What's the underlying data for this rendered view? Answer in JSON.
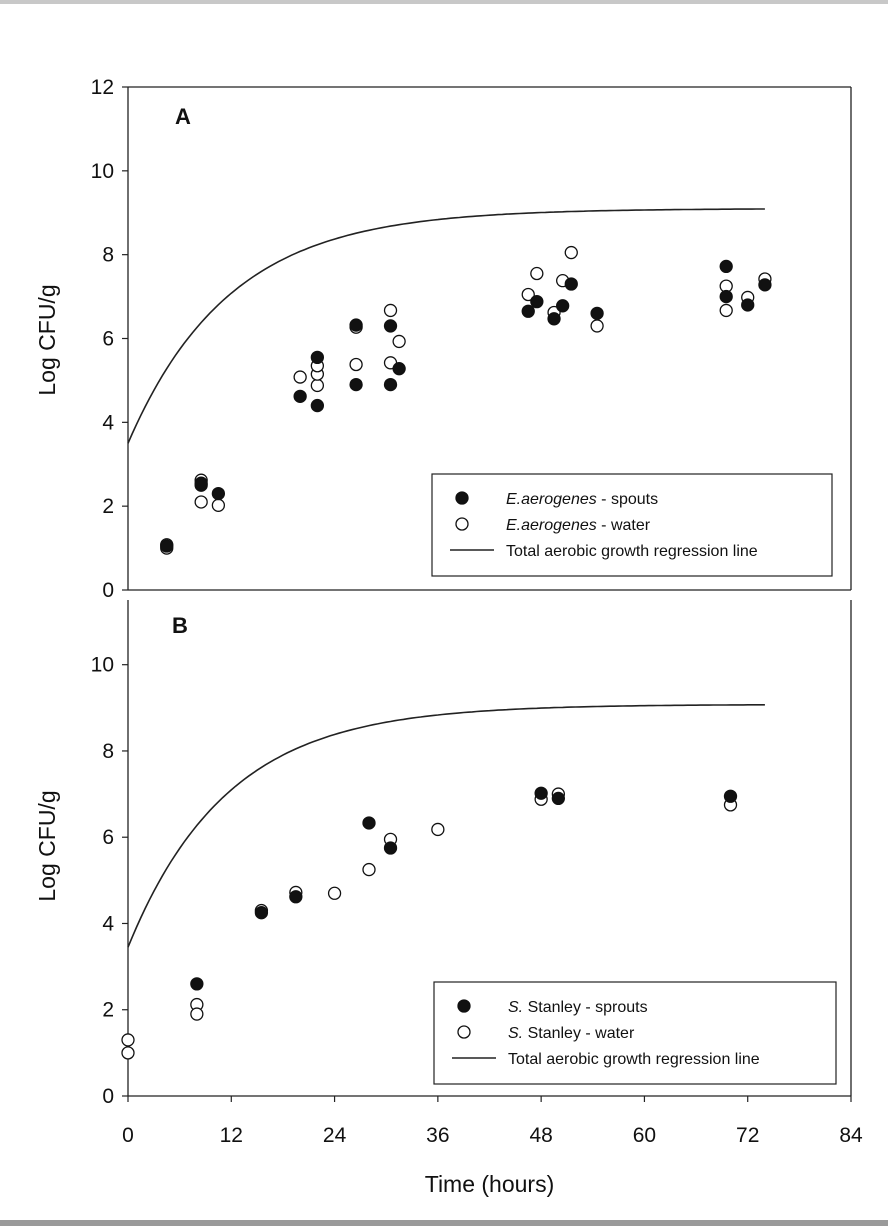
{
  "chart_data": [
    {
      "type": "scatter",
      "panel_label": "A",
      "ylabel": "Log CFU/g",
      "xlabel": "",
      "xlim": [
        0,
        84
      ],
      "ylim": [
        0,
        12
      ],
      "yticks": [
        0,
        2,
        4,
        6,
        8,
        10,
        12
      ],
      "legend_position": "bottom-right",
      "grid": false,
      "legend": [
        {
          "italic": "E.aerogenes",
          "rest": " - spouts",
          "marker": "filled"
        },
        {
          "italic": "E.aerogenes",
          "rest": " - water",
          "marker": "open"
        },
        {
          "italic": "",
          "rest": "Total aerobic growth regression line",
          "marker": "line"
        }
      ],
      "series": [
        {
          "marker": "filled",
          "points": [
            [
              4.5,
              1.05
            ],
            [
              8.5,
              2.5
            ],
            [
              8.5,
              2.55
            ],
            [
              10.5,
              2.3
            ],
            [
              20,
              4.62
            ],
            [
              22,
              4.4
            ],
            [
              22,
              5.55
            ],
            [
              26.5,
              4.9
            ],
            [
              26.5,
              6.32
            ],
            [
              30.5,
              4.9
            ],
            [
              30.5,
              6.3
            ],
            [
              31.5,
              5.28
            ],
            [
              46.5,
              6.65
            ],
            [
              47.5,
              6.88
            ],
            [
              49.5,
              6.47
            ],
            [
              50.5,
              6.78
            ],
            [
              51.5,
              7.3
            ],
            [
              54.5,
              6.6
            ],
            [
              69.5,
              7.72
            ],
            [
              69.5,
              7.0
            ],
            [
              72,
              6.8
            ],
            [
              74,
              7.28
            ]
          ]
        },
        {
          "marker": "open",
          "points": [
            [
              4.5,
              1.0
            ],
            [
              4.5,
              1.08
            ],
            [
              8.5,
              2.1
            ],
            [
              8.5,
              2.62
            ],
            [
              10.5,
              2.02
            ],
            [
              20,
              5.08
            ],
            [
              22,
              4.88
            ],
            [
              22,
              5.15
            ],
            [
              22,
              5.35
            ],
            [
              26.5,
              5.38
            ],
            [
              26.5,
              6.27
            ],
            [
              30.5,
              5.42
            ],
            [
              30.5,
              6.67
            ],
            [
              31.5,
              5.93
            ],
            [
              46.5,
              7.05
            ],
            [
              47.5,
              7.55
            ],
            [
              49.5,
              6.62
            ],
            [
              50.5,
              7.38
            ],
            [
              51.5,
              8.05
            ],
            [
              54.5,
              6.3
            ],
            [
              69.5,
              6.67
            ],
            [
              69.5,
              7.25
            ],
            [
              72,
              6.98
            ],
            [
              74,
              7.42
            ]
          ]
        }
      ],
      "regression": {
        "a": 3.5,
        "b": 9.1,
        "k": 0.085,
        "x_end": 74
      }
    },
    {
      "type": "scatter",
      "panel_label": "B",
      "ylabel": "Log CFU/g",
      "xlabel": "Time (hours)",
      "xlim": [
        0,
        84
      ],
      "ylim": [
        0,
        11.5
      ],
      "xticks": [
        0,
        12,
        24,
        36,
        48,
        60,
        72,
        84
      ],
      "yticks": [
        0,
        2,
        4,
        6,
        8,
        10
      ],
      "legend_position": "bottom-right",
      "grid": false,
      "legend": [
        {
          "italic": "S.",
          "rest": " Stanley - sprouts",
          "marker": "filled"
        },
        {
          "italic": "S.",
          "rest": " Stanley - water",
          "marker": "open"
        },
        {
          "italic": "",
          "rest": "Total aerobic growth regression line",
          "marker": "line"
        }
      ],
      "series": [
        {
          "marker": "filled",
          "points": [
            [
              8,
              2.6
            ],
            [
              15.5,
              4.25
            ],
            [
              19.5,
              4.62
            ],
            [
              28,
              6.33
            ],
            [
              30.5,
              5.75
            ],
            [
              48,
              7.02
            ],
            [
              50,
              6.9
            ],
            [
              70,
              6.95
            ]
          ]
        },
        {
          "marker": "open",
          "points": [
            [
              0,
              1.3
            ],
            [
              0,
              1.0
            ],
            [
              8,
              2.12
            ],
            [
              8,
              1.9
            ],
            [
              15.5,
              4.3
            ],
            [
              19.5,
              4.72
            ],
            [
              24,
              4.7
            ],
            [
              28,
              5.25
            ],
            [
              30.5,
              5.95
            ],
            [
              36,
              6.18
            ],
            [
              48,
              6.88
            ],
            [
              50,
              7.0
            ],
            [
              70,
              6.75
            ]
          ]
        }
      ],
      "regression": {
        "a": 3.45,
        "b": 9.08,
        "k": 0.087,
        "x_end": 74
      }
    }
  ]
}
